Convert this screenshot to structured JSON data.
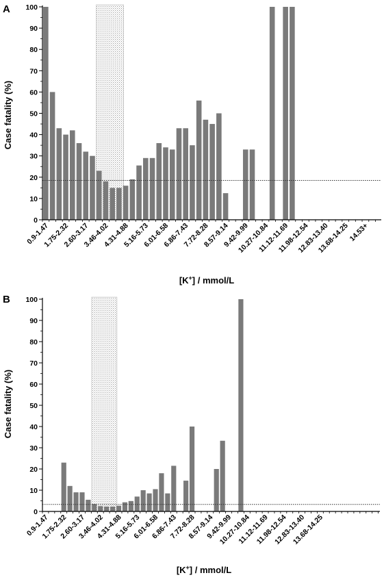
{
  "chart_data": [
    {
      "panel": "A",
      "type": "bar",
      "ylabel": "Case fatality (%)",
      "xlabel_main": "[K",
      "xlabel_sup": "+",
      "xlabel_rest": "] / mmol/L",
      "ylim": [
        0,
        100
      ],
      "yticks": [
        0,
        10,
        20,
        30,
        40,
        50,
        60,
        70,
        80,
        90,
        100
      ],
      "reference_line": 18.5,
      "normal_range_band": [
        8,
        12
      ],
      "category_labels": [
        "0.9-1.47",
        "1.75-2.32",
        "2.60-3.17",
        "3.46-4.02",
        "4.31-4.88",
        "5.16-5.73",
        "6.01-6.58",
        "6.86-7.43",
        "7.72-8.28",
        "8.57-9.14",
        "9.42-9.99",
        "10.27-10.84",
        "11.12-11.69",
        "11.98-12.54",
        "12.83-13.40",
        "13.68-14.25",
        "14.53+"
      ],
      "values": [
        100,
        60,
        43,
        40,
        42,
        36,
        32,
        30,
        23,
        18,
        15,
        15,
        16,
        19,
        25.5,
        29,
        29,
        36,
        34,
        33,
        43,
        43,
        35,
        56,
        47,
        45,
        50,
        12.5,
        null,
        null,
        33,
        33,
        null,
        null,
        100,
        null,
        100,
        100,
        null,
        null,
        null,
        null,
        null,
        null,
        null,
        null,
        null,
        null,
        null,
        null,
        null,
        null,
        null,
        null,
        null,
        null,
        null,
        null,
        null,
        null,
        null,
        null,
        null,
        null,
        null,
        null,
        null,
        null
      ],
      "grid": false,
      "legend": "none"
    },
    {
      "panel": "B",
      "type": "bar",
      "ylabel": "Case fatality (%)",
      "xlabel_main": "[K",
      "xlabel_sup": "+",
      "xlabel_rest": "] / mmol/L",
      "ylim": [
        0,
        100
      ],
      "yticks": [
        0,
        10,
        20,
        30,
        40,
        50,
        60,
        70,
        80,
        90,
        100
      ],
      "reference_line": 3.3,
      "normal_range_band": [
        8,
        12
      ],
      "category_labels": [
        "0.9-1.47",
        "1.75-2.32",
        "2.60-3.17",
        "3.46-4.02",
        "4.31-4.88",
        "5.16-5.73",
        "6.01-6.58",
        "6.86-7.43",
        "7.72-8.28",
        "8.57-9.14",
        "9.42-9.99",
        "10.27-10.84",
        "11.12-11.69",
        "11.98-12.54",
        "12.83-13.40",
        "13.68-14.25"
      ],
      "values": [
        null,
        null,
        null,
        23,
        12,
        9,
        9,
        5.5,
        3.5,
        2.5,
        2.3,
        2.3,
        2.7,
        4.3,
        4.9,
        7,
        10,
        8.5,
        10.5,
        18,
        8.5,
        21.5,
        null,
        14.5,
        40,
        null,
        null,
        null,
        20,
        33.3,
        null,
        null,
        100,
        null,
        null,
        null,
        null,
        null,
        null,
        null,
        null,
        null,
        null,
        null,
        null,
        null,
        null,
        null,
        null,
        null,
        null,
        null,
        null,
        null,
        null,
        null,
        null,
        null,
        null,
        null,
        null
      ],
      "grid": false,
      "legend": "none"
    }
  ]
}
